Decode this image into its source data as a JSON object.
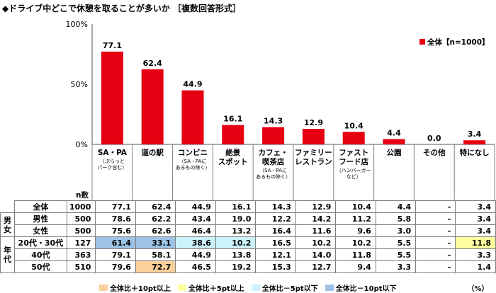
{
  "title": "◆ドライブ中どこで休憩を取ることが多いか ［複数回答形式］",
  "chart_data": {
    "type": "bar",
    "y_ticks": [
      "0%",
      "50%",
      "100%"
    ],
    "ylim": [
      0,
      100
    ],
    "legend": "全体【n=1000】",
    "bar_color": "#e60012",
    "categories": [
      {
        "lines": [
          "SA・PA"
        ],
        "sub": [
          "（ぷらっと",
          "パーク含む）"
        ]
      },
      {
        "lines": [
          "道の駅"
        ],
        "sub": []
      },
      {
        "lines": [
          "コンビニ"
        ],
        "sub": [
          "（SA・PAに",
          "あるもの除く）"
        ]
      },
      {
        "lines": [
          "絶景",
          "スポット"
        ],
        "sub": []
      },
      {
        "lines": [
          "カフェ・",
          "喫茶店"
        ],
        "sub": [
          "（SA・PAに",
          "あるもの除く）"
        ]
      },
      {
        "lines": [
          "ファミリー",
          "レストラン"
        ],
        "sub": []
      },
      {
        "lines": [
          "ファスト",
          "フード店"
        ],
        "sub": [
          "（ハンバーガー",
          "など）"
        ]
      },
      {
        "lines": [
          "公園"
        ],
        "sub": []
      },
      {
        "lines": [
          "その他"
        ],
        "sub": []
      },
      {
        "lines": [
          "特になし"
        ],
        "sub": []
      }
    ],
    "values": [
      77.1,
      62.4,
      44.9,
      16.1,
      14.3,
      12.9,
      10.4,
      4.4,
      0.0,
      3.4
    ],
    "value_labels": [
      "77.1",
      "62.4",
      "44.9",
      "16.1",
      "14.3",
      "12.9",
      "10.4",
      "4.4",
      "0.0",
      "3.4"
    ]
  },
  "table": {
    "n_header": "n数",
    "unit": "（%）",
    "rows": [
      {
        "group": "",
        "label": "全体",
        "n": "1000",
        "values": [
          "77.1",
          "62.4",
          "44.9",
          "16.1",
          "14.3",
          "12.9",
          "10.4",
          "4.4",
          "-",
          "3.4"
        ],
        "hl": [
          "",
          "",
          "",
          "",
          "",
          "",
          "",
          "",
          "",
          ""
        ]
      },
      {
        "group": "男女",
        "label": "男性",
        "n": "500",
        "values": [
          "78.6",
          "62.2",
          "43.4",
          "19.0",
          "12.2",
          "14.2",
          "11.2",
          "5.8",
          "-",
          "3.4"
        ],
        "hl": [
          "",
          "",
          "",
          "",
          "",
          "",
          "",
          "",
          "",
          ""
        ]
      },
      {
        "group": "",
        "label": "女性",
        "n": "500",
        "values": [
          "75.6",
          "62.6",
          "46.4",
          "13.2",
          "16.4",
          "11.6",
          "9.6",
          "3.0",
          "-",
          "3.4"
        ],
        "hl": [
          "",
          "",
          "",
          "",
          "",
          "",
          "",
          "",
          "",
          ""
        ]
      },
      {
        "group": "年代",
        "label": "20代・30代",
        "n": "127",
        "values": [
          "61.4",
          "33.1",
          "38.6",
          "10.2",
          "16.5",
          "10.2",
          "10.2",
          "5.5",
          "-",
          "11.8"
        ],
        "hl": [
          "m10",
          "m10",
          "m5",
          "m5",
          "",
          "",
          "",
          "",
          "",
          "p5"
        ]
      },
      {
        "group": "",
        "label": "40代",
        "n": "363",
        "values": [
          "79.1",
          "58.1",
          "44.9",
          "13.8",
          "12.1",
          "14.0",
          "11.8",
          "5.5",
          "-",
          "3.3"
        ],
        "hl": [
          "",
          "",
          "",
          "",
          "",
          "",
          "",
          "",
          "",
          ""
        ]
      },
      {
        "group": "",
        "label": "50代",
        "n": "510",
        "values": [
          "79.6",
          "72.7",
          "46.5",
          "19.2",
          "15.3",
          "12.7",
          "9.4",
          "3.3",
          "-",
          "1.4"
        ],
        "hl": [
          "",
          "p10",
          "",
          "",
          "",
          "",
          "",
          "",
          "",
          ""
        ]
      }
    ]
  },
  "highlight_colors": {
    "p10": "#fbcf9b",
    "p5": "#ffff9f",
    "m5": "#ccf2fb",
    "m10": "#9cc3e6"
  },
  "bottom_legend": [
    {
      "key": "p10",
      "label": "全体比＋10pt以上"
    },
    {
      "key": "p5",
      "label": "全体比＋5pt以上"
    },
    {
      "key": "m5",
      "label": "全体比－5pt以下"
    },
    {
      "key": "m10",
      "label": "全体比－10pt以下"
    }
  ]
}
